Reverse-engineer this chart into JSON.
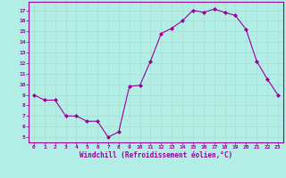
{
  "x": [
    0,
    1,
    2,
    3,
    4,
    5,
    6,
    7,
    8,
    9,
    10,
    11,
    12,
    13,
    14,
    15,
    16,
    17,
    18,
    19,
    20,
    21,
    22,
    23
  ],
  "y": [
    9.0,
    8.5,
    8.5,
    7.0,
    7.0,
    6.5,
    6.5,
    5.0,
    5.5,
    9.8,
    9.9,
    12.2,
    14.8,
    15.3,
    16.0,
    17.0,
    16.8,
    17.1,
    16.8,
    16.5,
    15.2,
    12.2,
    10.5,
    9.0
  ],
  "line_color": "#990099",
  "marker_color": "#990099",
  "bg_color": "#b2eee6",
  "grid_color": "#aaddcc",
  "tick_color": "#990099",
  "xlabel": "Windchill (Refroidissement éolien,°C)",
  "xlabel_color": "#990099",
  "yticks": [
    5,
    6,
    7,
    8,
    9,
    10,
    11,
    12,
    13,
    14,
    15,
    16,
    17
  ],
  "xticks": [
    0,
    1,
    2,
    3,
    4,
    5,
    6,
    7,
    8,
    9,
    10,
    11,
    12,
    13,
    14,
    15,
    16,
    17,
    18,
    19,
    20,
    21,
    22,
    23
  ],
  "ylim": [
    4.5,
    17.8
  ],
  "xlim": [
    -0.5,
    23.5
  ]
}
